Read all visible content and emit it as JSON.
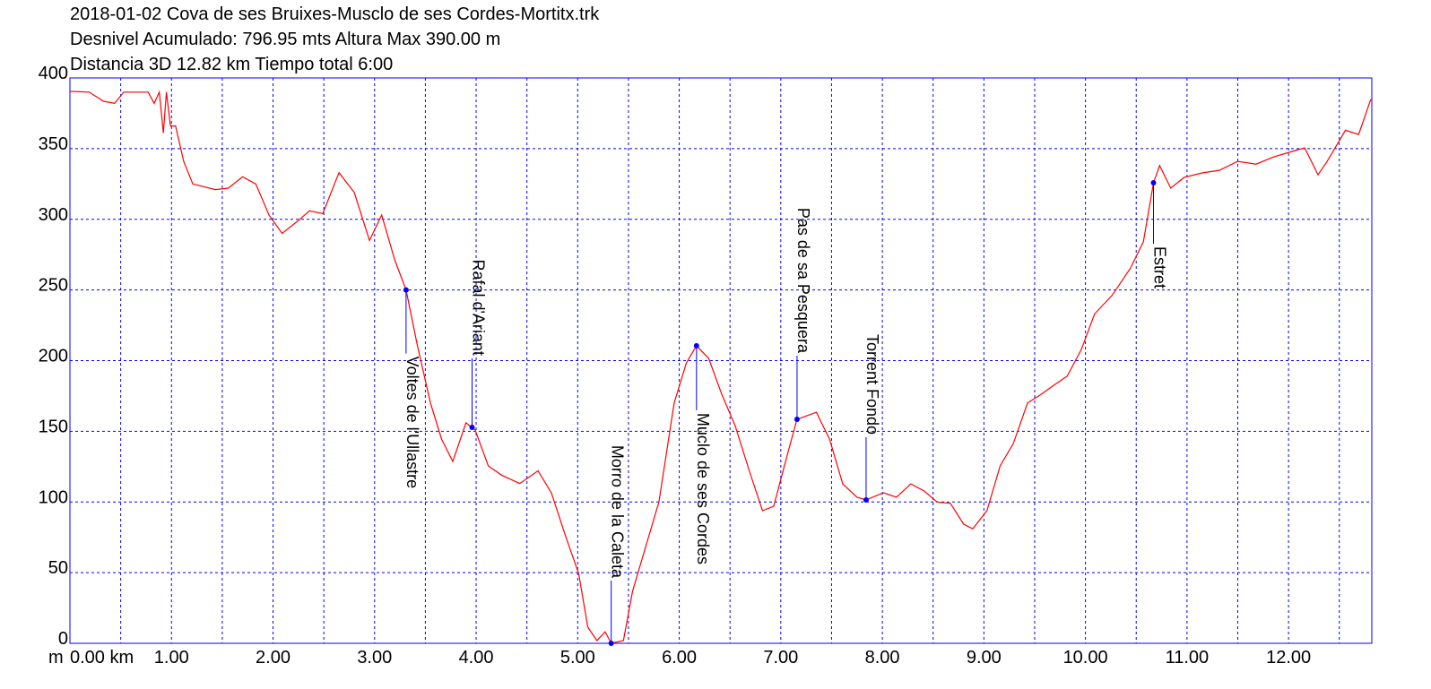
{
  "chart_data": {
    "type": "line",
    "title_lines": [
      "2018-01-02 Cova de ses Bruixes-Musclo de ses Cordes-Mortitx.trk",
      "Desnivel Acumulado: 796.95 mts  Altura Max 390.00 m",
      "Distancia 3D 12.82 km  Tiempo total 6:00"
    ],
    "y_unit": "m",
    "xlim": [
      0,
      12.82
    ],
    "ylim": [
      0,
      400
    ],
    "xticks": [
      {
        "value": 0,
        "label": "0.00 km"
      },
      {
        "value": 1,
        "label": "1.00"
      },
      {
        "value": 2,
        "label": "2.00"
      },
      {
        "value": 3,
        "label": "3.00"
      },
      {
        "value": 4,
        "label": "4.00"
      },
      {
        "value": 5,
        "label": "5.00"
      },
      {
        "value": 6,
        "label": "6.00"
      },
      {
        "value": 7,
        "label": "7.00"
      },
      {
        "value": 8,
        "label": "8.00"
      },
      {
        "value": 9,
        "label": "9.00"
      },
      {
        "value": 10,
        "label": "10.00"
      },
      {
        "value": 11,
        "label": "11.00"
      },
      {
        "value": 12,
        "label": "12.00"
      }
    ],
    "xgrid_minor": [
      0.5,
      1.5,
      2.5,
      3.5,
      4.5,
      5.5,
      6.5,
      7.5,
      8.5,
      9.5,
      10.5,
      11.5,
      12.5
    ],
    "yticks": [
      0,
      50,
      100,
      150,
      200,
      250,
      300,
      350,
      400
    ],
    "grid": true,
    "color": "#ff0000",
    "x": [
      0,
      0.19,
      0.33,
      0.44,
      0.53,
      0.77,
      0.83,
      0.88,
      0.92,
      0.95,
      0.99,
      1.04,
      1.12,
      1.21,
      1.43,
      1.56,
      1.7,
      1.83,
      1.96,
      2.09,
      2.23,
      2.36,
      2.49,
      2.65,
      2.8,
      2.95,
      3.07,
      3.2,
      3.31,
      3.42,
      3.55,
      3.66,
      3.77,
      3.9,
      3.99,
      4.12,
      4.25,
      4.43,
      4.61,
      4.74,
      4.88,
      5.01,
      5.1,
      5.19,
      5.27,
      5.33,
      5.45,
      5.54,
      5.67,
      5.8,
      5.95,
      6.07,
      6.17,
      6.29,
      6.42,
      6.55,
      6.69,
      6.82,
      6.93,
      7.07,
      7.16,
      7.35,
      7.48,
      7.61,
      7.75,
      7.84,
      8.01,
      8.14,
      8.28,
      8.41,
      8.54,
      8.67,
      8.8,
      8.89,
      9.03,
      9.16,
      9.29,
      9.43,
      9.56,
      9.69,
      9.82,
      9.96,
      10.09,
      10.26,
      10.44,
      10.57,
      10.67,
      10.73,
      10.84,
      10.97,
      11.15,
      11.32,
      11.5,
      11.68,
      11.85,
      12.08,
      12.16,
      12.29,
      12.38,
      12.56,
      12.69,
      12.81
    ],
    "values": [
      390.5,
      390,
      383.5,
      382,
      390,
      390,
      382,
      390,
      361,
      390,
      366,
      366,
      341,
      325,
      321,
      322,
      330,
      325,
      303,
      290,
      298,
      306,
      304,
      333,
      319,
      285,
      303,
      271,
      250,
      211,
      170,
      144.5,
      128.7,
      156,
      151,
      125.5,
      119,
      113,
      122,
      106.5,
      76,
      49.4,
      11.4,
      1.9,
      8.2,
      0,
      1.9,
      36.8,
      68.5,
      100,
      170,
      198.4,
      210.5,
      201.6,
      176,
      154,
      122,
      93.8,
      97,
      135,
      158.5,
      163.5,
      144.5,
      112.8,
      103.3,
      101.4,
      106.5,
      103.3,
      112.8,
      107.8,
      100,
      99,
      84.3,
      81,
      93.8,
      125.5,
      141.4,
      170,
      176,
      182.6,
      189,
      208,
      233,
      246,
      265,
      284,
      325.8,
      338,
      322,
      329.6,
      332.8,
      334.7,
      341,
      339,
      344,
      349,
      350.5,
      331.5,
      341,
      363,
      360,
      385
    ],
    "waypoints": [
      {
        "name": "Voltes de l'Ullastre",
        "x": 3.31,
        "y": 250
      },
      {
        "name": "Rafal d'Ariant",
        "x": 3.96,
        "y": 152.8
      },
      {
        "name": "Morro de la Caleta",
        "x": 5.33,
        "y": 0
      },
      {
        "name": "Muclo de ses Cordes",
        "x": 6.17,
        "y": 210.5
      },
      {
        "name": "Pas de sa Pesquera",
        "x": 7.16,
        "y": 158.5
      },
      {
        "name": "Torrent Fondo",
        "x": 7.84,
        "y": 101.4
      },
      {
        "name": "Estret",
        "x": 10.67,
        "y": 325.8
      }
    ]
  }
}
